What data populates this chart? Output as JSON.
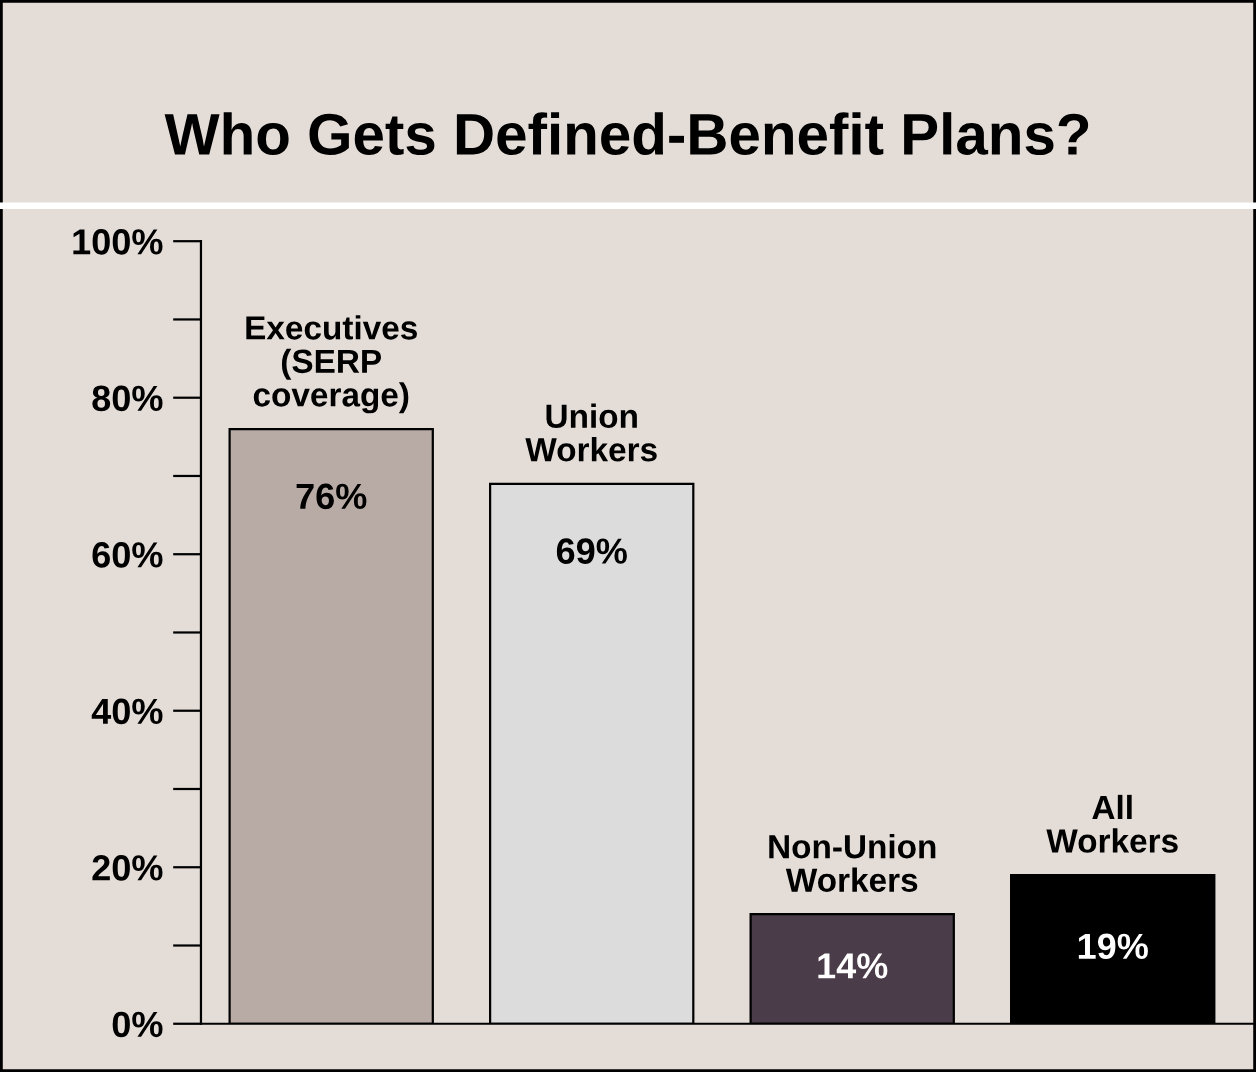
{
  "chart_data": {
    "type": "bar",
    "title": "Who Gets Defined-Benefit Plans?",
    "categories": [
      "Executives\n(SERP\ncoverage)",
      "Union\nWorkers",
      "Non-Union\nWorkers",
      "All\nWorkers"
    ],
    "values": [
      76,
      69,
      14,
      19
    ],
    "colors": [
      "#b8aba5",
      "#dcdcdc",
      "#4a3c48",
      "#000000"
    ],
    "value_labels": [
      "76%",
      "69%",
      "14%",
      "19%"
    ],
    "ylim": [
      0,
      100
    ],
    "yticks": [
      {
        "value": 0,
        "label": "0%"
      },
      {
        "value": 10,
        "label": null
      },
      {
        "value": 20,
        "label": "20%"
      },
      {
        "value": 30,
        "label": null
      },
      {
        "value": 40,
        "label": "40%"
      },
      {
        "value": 50,
        "label": null
      },
      {
        "value": 60,
        "label": "60%"
      },
      {
        "value": 70,
        "label": null
      },
      {
        "value": 80,
        "label": "80%"
      },
      {
        "value": 90,
        "label": null
      },
      {
        "value": 100,
        "label": "100%"
      }
    ],
    "grid": false,
    "legend": false,
    "tick_labels": "y"
  }
}
